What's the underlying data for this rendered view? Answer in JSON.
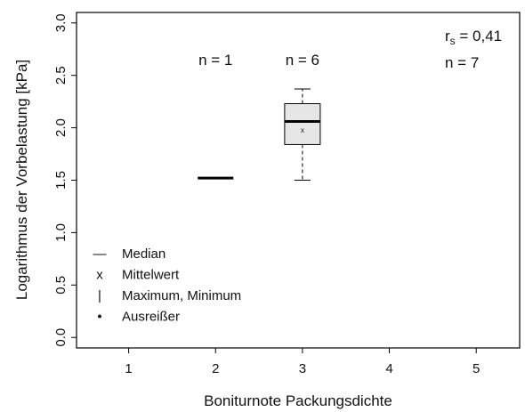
{
  "chart_data": {
    "type": "boxplot",
    "xlabel": "Boniturnote Packungsdichte",
    "ylabel": "Logarithmus der Vorbelastung [kPa]",
    "x_ticks": [
      "1",
      "2",
      "3",
      "4",
      "5"
    ],
    "y_ticks": [
      "0.0",
      "0.5",
      "1.0",
      "1.5",
      "2.0",
      "2.5",
      "3.0"
    ],
    "xlim": [
      0.4,
      5.5
    ],
    "ylim": [
      -0.1,
      3.1
    ],
    "grid": false,
    "boxes": [
      {
        "x": 2,
        "n_label": "n = 1",
        "min": 1.52,
        "q1": 1.52,
        "median": 1.52,
        "q3": 1.52,
        "max": 1.52,
        "mean": 1.52
      },
      {
        "x": 3,
        "n_label": "n = 6",
        "min": 1.5,
        "q1": 1.84,
        "median": 2.06,
        "q3": 2.23,
        "max": 2.37,
        "mean": 1.98
      }
    ],
    "stats": {
      "r_symbol": "r",
      "r_subscript": "s",
      "r_value": " = 0,41",
      "n_total": "n = 7"
    },
    "legend": {
      "placement": "bottom-left",
      "items": [
        {
          "symbol": "—",
          "label": "Median"
        },
        {
          "symbol": "x",
          "label": "Mittelwert"
        },
        {
          "symbol": "|",
          "label": "Maximum, Minimum"
        },
        {
          "symbol": "•",
          "label": "Ausreißer"
        }
      ]
    },
    "colors": {
      "box_fill": "#e6e6e6",
      "line": "#000000"
    }
  }
}
